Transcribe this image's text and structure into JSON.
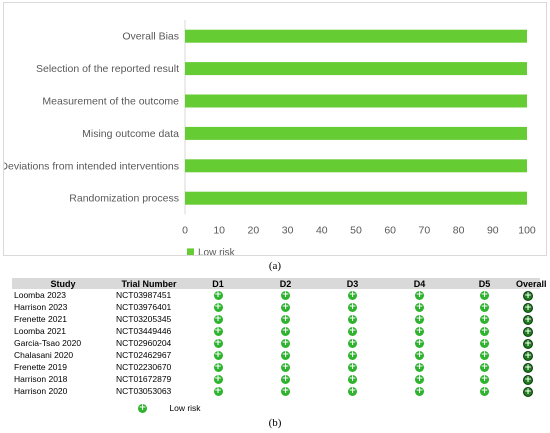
{
  "chart_data": [
    {
      "type": "bar",
      "orientation": "horizontal",
      "categories": [
        "Overall Bias",
        "Selection of the reported result",
        "Measurement of the outcome",
        "Mising outcome data",
        "Deviations from intended interventions",
        "Randomization process"
      ],
      "series": [
        {
          "name": "Low risk",
          "values": [
            100,
            100,
            100,
            100,
            100,
            100
          ]
        }
      ],
      "xlim": [
        0,
        100
      ],
      "xticks": [
        "0",
        "10",
        "20",
        "30",
        "40",
        "50",
        "60",
        "70",
        "80",
        "90",
        "100"
      ],
      "grid": false,
      "legend": "bottom-left",
      "colors": {
        "bar": "#66cc33"
      }
    },
    {
      "type": "table",
      "columns": [
        "Study",
        "Trial Number",
        "D1",
        "D2",
        "D3",
        "D4",
        "D5",
        "Overall"
      ],
      "rows": [
        {
          "study": "Loomba 2023",
          "trial": "NCT03987451",
          "marks": [
            "+",
            "+",
            "+",
            "+",
            "+",
            "+"
          ]
        },
        {
          "study": "Harrison 2023",
          "trial": "NCT03976401",
          "marks": [
            "+",
            "+",
            "+",
            "+",
            "+",
            "+"
          ]
        },
        {
          "study": "Frenette 2021",
          "trial": "NCT03205345",
          "marks": [
            "+",
            "+",
            "+",
            "+",
            "+",
            "+"
          ]
        },
        {
          "study": "Loomba 2021",
          "trial": "NCT03449446",
          "marks": [
            "+",
            "+",
            "+",
            "+",
            "+",
            "+"
          ]
        },
        {
          "study": "Garcia-Tsao 2020",
          "trial": "NCT02960204",
          "marks": [
            "+",
            "+",
            "+",
            "+",
            "+",
            "+"
          ]
        },
        {
          "study": "Chalasani 2020",
          "trial": "NCT02462967",
          "marks": [
            "+",
            "+",
            "+",
            "+",
            "+",
            "+"
          ]
        },
        {
          "study": "Frenette 2019",
          "trial": "NCT02230670",
          "marks": [
            "+",
            "+",
            "+",
            "+",
            "+",
            "+"
          ]
        },
        {
          "study": "Harrison 2018",
          "trial": "NCT01672879",
          "marks": [
            "+",
            "+",
            "+",
            "+",
            "+",
            "+"
          ]
        },
        {
          "study": "Harrison 2020",
          "trial": "NCT03053063",
          "marks": [
            "+",
            "+",
            "+",
            "+",
            "+",
            "+"
          ]
        }
      ],
      "legend": {
        "symbol": "+",
        "label": "Low risk"
      }
    }
  ],
  "captions": {
    "a": "(a)",
    "b": "(b)"
  }
}
